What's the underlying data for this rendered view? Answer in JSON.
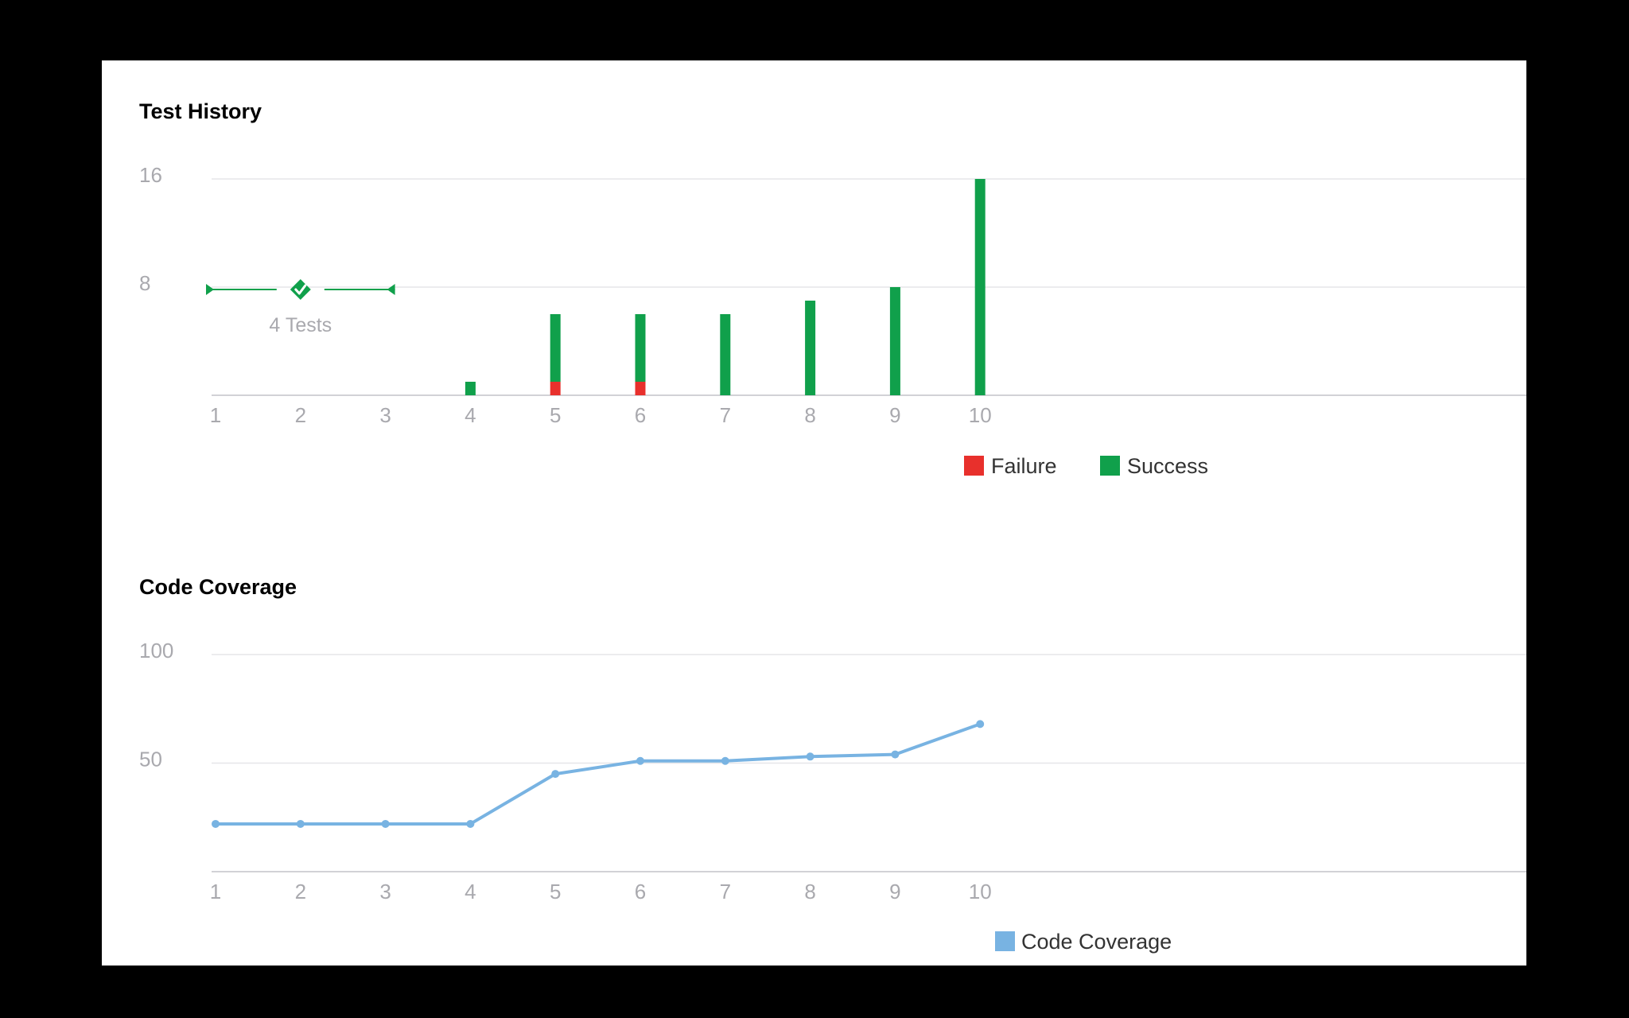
{
  "chart_data": [
    {
      "type": "bar",
      "title": "Test History",
      "categories": [
        "1",
        "2",
        "3",
        "4",
        "5",
        "6",
        "7",
        "8",
        "9",
        "10"
      ],
      "ylim": [
        0,
        16
      ],
      "yticks": [
        8,
        16
      ],
      "stacked": true,
      "series": [
        {
          "name": "Failure",
          "color": "#e8302c",
          "values": [
            0,
            0,
            0,
            0,
            1,
            1,
            0,
            0,
            0,
            0
          ]
        },
        {
          "name": "Success",
          "color": "#10a04b",
          "values": [
            0,
            0,
            0,
            1,
            5,
            5,
            6,
            7,
            8,
            16
          ]
        }
      ],
      "annotation": {
        "text": "4 Tests",
        "from": 1,
        "to": 3,
        "value": 8,
        "color": "#10a04b"
      },
      "grid": true,
      "legend": "bottom-center"
    },
    {
      "type": "line",
      "title": "Code Coverage",
      "categories": [
        "1",
        "2",
        "3",
        "4",
        "5",
        "6",
        "7",
        "8",
        "9",
        "10"
      ],
      "ylim": [
        0,
        100
      ],
      "yticks": [
        50,
        100
      ],
      "series": [
        {
          "name": "Code Coverage",
          "color": "#78b3e2",
          "values": [
            22,
            22,
            22,
            22,
            45,
            51,
            51,
            53,
            54,
            68
          ]
        }
      ],
      "grid": true,
      "legend": "bottom-center"
    }
  ]
}
